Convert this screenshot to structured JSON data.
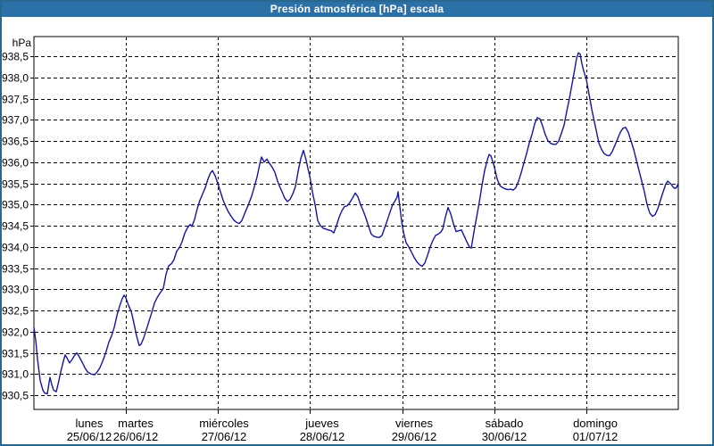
{
  "window": {
    "title": "Presión atmosférica [hPa] escala"
  },
  "colors": {
    "titlebar_bg": "#2b70a6",
    "frame_border": "#29678f",
    "line_color": "#1515a3",
    "grid_color": "#000000",
    "plot_bg": "#ffffff"
  },
  "chart_data": {
    "type": "line",
    "title": "Presión atmosférica [hPa] escala",
    "ylabel": "hPa",
    "grid": true,
    "legend": "none",
    "y_axis": {
      "unit_label": "hPa",
      "min": 930.5,
      "max": 938.5,
      "tick_step": 0.5,
      "tick_labels": [
        "938,5",
        "938,0",
        "937,5",
        "937,0",
        "936,5",
        "936,0",
        "935,5",
        "935,0",
        "934,5",
        "934,0",
        "933,5",
        "933,0",
        "932,5",
        "932,0",
        "931,5",
        "931,0",
        "930,5"
      ]
    },
    "x_axis": {
      "days": [
        {
          "name": "lunes",
          "date": "25/06/12"
        },
        {
          "name": "martes",
          "date": "26/06/12"
        },
        {
          "name": "miércoles",
          "date": "27/06/12"
        },
        {
          "name": "jueves",
          "date": "28/06/12"
        },
        {
          "name": "viernes",
          "date": "29/06/12"
        },
        {
          "name": "sábado",
          "date": "30/06/12"
        },
        {
          "name": "domingo",
          "date": "01/07/12"
        }
      ]
    },
    "series": [
      {
        "name": "Presión atmosférica",
        "unit": "hPa",
        "points": [
          [
            38,
            932.1
          ],
          [
            40,
            931.8
          ],
          [
            42,
            931.35
          ],
          [
            45,
            930.85
          ],
          [
            48,
            930.62
          ],
          [
            50,
            930.55
          ],
          [
            53,
            930.53
          ],
          [
            55,
            930.8
          ],
          [
            56,
            930.92
          ],
          [
            58,
            930.75
          ],
          [
            60,
            930.62
          ],
          [
            63,
            930.58
          ],
          [
            65,
            930.75
          ],
          [
            68,
            931.05
          ],
          [
            71,
            931.3
          ],
          [
            73,
            931.45
          ],
          [
            75,
            931.38
          ],
          [
            78,
            931.26
          ],
          [
            81,
            931.35
          ],
          [
            84,
            931.45
          ],
          [
            86,
            931.5
          ],
          [
            89,
            931.4
          ],
          [
            92,
            931.28
          ],
          [
            95,
            931.15
          ],
          [
            98,
            931.05
          ],
          [
            102,
            931.0
          ],
          [
            106,
            930.98
          ],
          [
            109,
            931.05
          ],
          [
            112,
            931.15
          ],
          [
            115,
            931.3
          ],
          [
            118,
            931.47
          ],
          [
            122,
            931.75
          ],
          [
            125,
            931.9
          ],
          [
            128,
            932.1
          ],
          [
            131,
            932.38
          ],
          [
            134,
            932.6
          ],
          [
            137,
            932.78
          ],
          [
            139,
            932.86
          ],
          [
            141,
            932.8
          ],
          [
            144,
            932.62
          ],
          [
            147,
            932.48
          ],
          [
            150,
            932.2
          ],
          [
            153,
            931.9
          ],
          [
            156,
            931.67
          ],
          [
            158,
            931.7
          ],
          [
            161,
            931.85
          ],
          [
            164,
            932.05
          ],
          [
            167,
            932.25
          ],
          [
            170,
            932.45
          ],
          [
            173,
            932.67
          ],
          [
            176,
            932.8
          ],
          [
            179,
            932.9
          ],
          [
            183,
            933.02
          ],
          [
            186,
            933.35
          ],
          [
            189,
            933.55
          ],
          [
            192,
            933.6
          ],
          [
            195,
            933.7
          ],
          [
            198,
            933.9
          ],
          [
            201,
            933.98
          ],
          [
            204,
            934.12
          ],
          [
            207,
            934.32
          ],
          [
            210,
            934.45
          ],
          [
            213,
            934.53
          ],
          [
            215,
            934.48
          ],
          [
            218,
            934.65
          ],
          [
            221,
            934.9
          ],
          [
            224,
            935.1
          ],
          [
            227,
            935.25
          ],
          [
            230,
            935.4
          ],
          [
            233,
            935.6
          ],
          [
            236,
            935.75
          ],
          [
            238,
            935.8
          ],
          [
            241,
            935.68
          ],
          [
            244,
            935.5
          ],
          [
            247,
            935.3
          ],
          [
            250,
            935.1
          ],
          [
            253,
            934.95
          ],
          [
            256,
            934.82
          ],
          [
            259,
            934.72
          ],
          [
            262,
            934.63
          ],
          [
            265,
            934.58
          ],
          [
            268,
            934.55
          ],
          [
            271,
            934.62
          ],
          [
            274,
            934.78
          ],
          [
            278,
            934.98
          ],
          [
            282,
            935.2
          ],
          [
            285,
            935.42
          ],
          [
            288,
            935.65
          ],
          [
            291,
            935.95
          ],
          [
            293,
            936.12
          ],
          [
            296,
            936.0
          ],
          [
            299,
            936.07
          ],
          [
            302,
            935.97
          ],
          [
            305,
            935.88
          ],
          [
            308,
            935.76
          ],
          [
            311,
            935.55
          ],
          [
            313,
            935.44
          ],
          [
            316,
            935.3
          ],
          [
            319,
            935.15
          ],
          [
            322,
            935.07
          ],
          [
            325,
            935.12
          ],
          [
            328,
            935.25
          ],
          [
            331,
            935.42
          ],
          [
            334,
            935.78
          ],
          [
            337,
            936.08
          ],
          [
            340,
            936.28
          ],
          [
            343,
            936.05
          ],
          [
            345,
            935.85
          ],
          [
            347,
            935.68
          ],
          [
            350,
            935.3
          ],
          [
            353,
            935.0
          ],
          [
            356,
            934.62
          ],
          [
            359,
            934.5
          ],
          [
            362,
            934.44
          ],
          [
            365,
            934.42
          ],
          [
            368,
            934.4
          ],
          [
            371,
            934.38
          ],
          [
            374,
            934.33
          ],
          [
            377,
            934.5
          ],
          [
            380,
            934.7
          ],
          [
            383,
            934.85
          ],
          [
            386,
            934.95
          ],
          [
            389,
            934.97
          ],
          [
            392,
            935.05
          ],
          [
            395,
            935.15
          ],
          [
            398,
            935.27
          ],
          [
            401,
            935.18
          ],
          [
            404,
            935.0
          ],
          [
            407,
            934.85
          ],
          [
            410,
            934.68
          ],
          [
            413,
            934.48
          ],
          [
            416,
            934.3
          ],
          [
            419,
            934.25
          ],
          [
            422,
            934.23
          ],
          [
            425,
            934.22
          ],
          [
            428,
            934.27
          ],
          [
            431,
            934.45
          ],
          [
            434,
            934.63
          ],
          [
            437,
            934.82
          ],
          [
            440,
            935.0
          ],
          [
            443,
            935.1
          ],
          [
            445,
            935.18
          ],
          [
            446,
            935.3
          ],
          [
            448,
            934.95
          ],
          [
            450,
            934.6
          ],
          [
            452,
            934.35
          ],
          [
            455,
            934.1
          ],
          [
            458,
            934.0
          ],
          [
            461,
            933.88
          ],
          [
            464,
            933.75
          ],
          [
            467,
            933.65
          ],
          [
            470,
            933.58
          ],
          [
            473,
            933.54
          ],
          [
            476,
            933.62
          ],
          [
            479,
            933.8
          ],
          [
            482,
            934.0
          ],
          [
            485,
            934.15
          ],
          [
            488,
            934.27
          ],
          [
            491,
            934.3
          ],
          [
            494,
            934.35
          ],
          [
            496,
            934.42
          ],
          [
            499,
            934.7
          ],
          [
            502,
            934.93
          ],
          [
            505,
            934.78
          ],
          [
            508,
            934.55
          ],
          [
            511,
            934.36
          ],
          [
            514,
            934.38
          ],
          [
            517,
            934.4
          ],
          [
            520,
            934.26
          ],
          [
            523,
            934.12
          ],
          [
            526,
            934.0
          ],
          [
            528,
            933.97
          ],
          [
            531,
            934.35
          ],
          [
            534,
            934.7
          ],
          [
            537,
            935.05
          ],
          [
            540,
            935.45
          ],
          [
            543,
            935.8
          ],
          [
            546,
            936.05
          ],
          [
            548,
            936.18
          ],
          [
            550,
            936.15
          ],
          [
            552,
            936.02
          ],
          [
            554,
            935.88
          ],
          [
            557,
            935.6
          ],
          [
            560,
            935.45
          ],
          [
            563,
            935.4
          ],
          [
            566,
            935.37
          ],
          [
            569,
            935.35
          ],
          [
            572,
            935.36
          ],
          [
            575,
            935.34
          ],
          [
            578,
            935.4
          ],
          [
            581,
            935.55
          ],
          [
            584,
            935.75
          ],
          [
            587,
            935.98
          ],
          [
            590,
            936.2
          ],
          [
            593,
            936.45
          ],
          [
            596,
            936.65
          ],
          [
            599,
            936.9
          ],
          [
            602,
            937.05
          ],
          [
            605,
            937.02
          ],
          [
            608,
            936.85
          ],
          [
            611,
            936.65
          ],
          [
            614,
            936.5
          ],
          [
            617,
            936.44
          ],
          [
            620,
            936.42
          ],
          [
            623,
            936.42
          ],
          [
            626,
            936.5
          ],
          [
            629,
            936.68
          ],
          [
            632,
            936.87
          ],
          [
            635,
            937.2
          ],
          [
            638,
            937.5
          ],
          [
            641,
            937.85
          ],
          [
            644,
            938.2
          ],
          [
            646,
            938.45
          ],
          [
            648,
            938.58
          ],
          [
            650,
            938.55
          ],
          [
            652,
            938.32
          ],
          [
            654,
            938.15
          ],
          [
            657,
            937.95
          ],
          [
            660,
            937.6
          ],
          [
            663,
            937.25
          ],
          [
            665,
            937.05
          ],
          [
            668,
            936.75
          ],
          [
            671,
            936.45
          ],
          [
            674,
            936.3
          ],
          [
            677,
            936.2
          ],
          [
            680,
            936.16
          ],
          [
            683,
            936.15
          ],
          [
            686,
            936.25
          ],
          [
            689,
            936.4
          ],
          [
            692,
            936.55
          ],
          [
            695,
            936.7
          ],
          [
            698,
            936.8
          ],
          [
            701,
            936.82
          ],
          [
            704,
            936.7
          ],
          [
            707,
            936.5
          ],
          [
            710,
            936.3
          ],
          [
            713,
            936.05
          ],
          [
            716,
            935.8
          ],
          [
            719,
            935.55
          ],
          [
            722,
            935.3
          ],
          [
            725,
            935.0
          ],
          [
            728,
            934.8
          ],
          [
            731,
            934.72
          ],
          [
            734,
            934.76
          ],
          [
            737,
            934.9
          ],
          [
            740,
            935.1
          ],
          [
            743,
            935.3
          ],
          [
            746,
            935.48
          ],
          [
            748,
            935.55
          ],
          [
            751,
            935.5
          ],
          [
            754,
            935.42
          ],
          [
            756,
            935.38
          ],
          [
            758,
            935.4
          ],
          [
            760,
            935.5
          ]
        ]
      }
    ]
  }
}
